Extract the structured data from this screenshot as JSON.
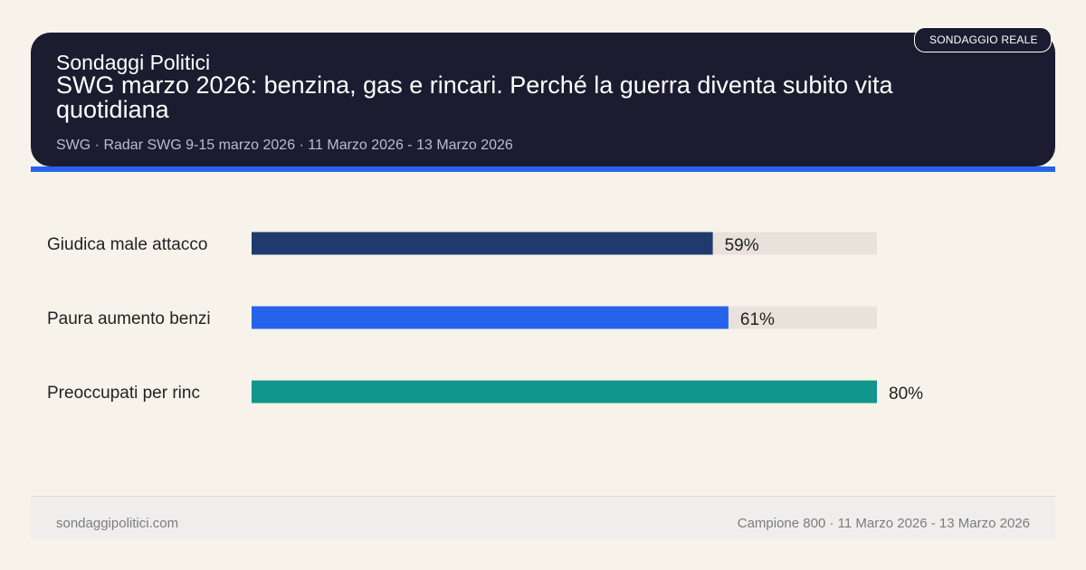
{
  "header": {
    "site_name": "Sondaggi Politici",
    "title": "SWG marzo 2026: benzina, gas e rincari. Perché la guerra diventa subito vita quotidiana",
    "subtitle": "SWG · Radar SWG 9-15 marzo 2026 · 11 Marzo 2026 - 13 Marzo 2026",
    "badge": "SONDAGGIO REALE",
    "accent_color": "#2563eb",
    "background_color": "#1c1c30"
  },
  "chart_data": {
    "type": "bar",
    "orientation": "horizontal",
    "categories": [
      "Giudica male attacco",
      "Paura aumento benzi",
      "Preoccupati per rinc"
    ],
    "values": [
      59,
      61,
      80
    ],
    "value_labels": [
      "59%",
      "61%",
      "80%"
    ],
    "colors": [
      "#1e3a6e",
      "#2563eb",
      "#10968a"
    ],
    "track_color": "#e8e2da",
    "xlim": [
      0,
      80
    ],
    "grid": false
  },
  "footer": {
    "site": "sondaggipolitici.com",
    "sample": "Campione 800 · 11 Marzo 2026 - 13 Marzo 2026"
  }
}
